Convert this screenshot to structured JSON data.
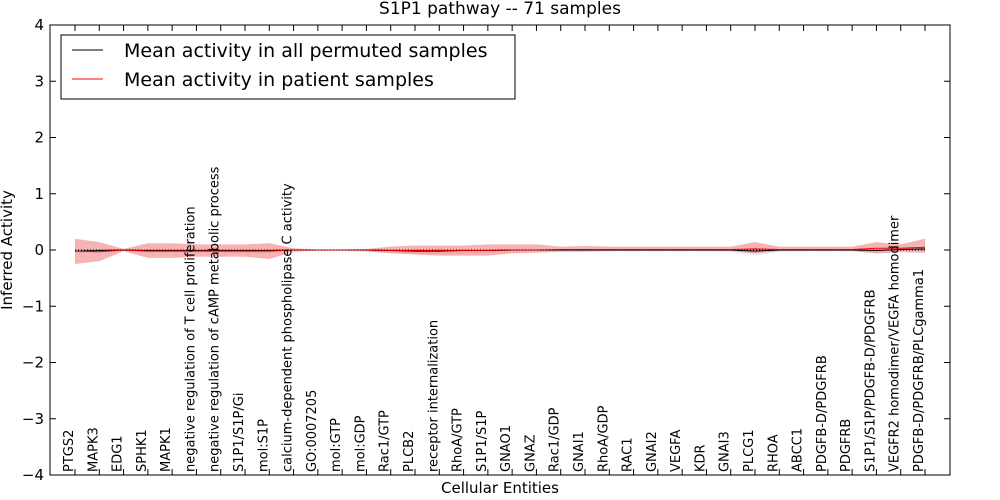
{
  "chart_data": {
    "type": "line",
    "title": "S1P1 pathway -- 71 samples",
    "xlabel": "Cellular Entities",
    "ylabel": "Inferred Activity",
    "ylim": [
      -4,
      4
    ],
    "yticks": [
      -4,
      -3,
      -2,
      -1,
      0,
      1,
      2,
      3,
      4
    ],
    "ytick_labels": [
      "−4",
      "−3",
      "−2",
      "−1",
      "0",
      "1",
      "2",
      "3",
      "4"
    ],
    "legend_position": "top-left",
    "categories": [
      "PTGS2",
      "MAPK3",
      "EDG1",
      "SPHK1",
      "MAPK1",
      "negative regulation of T cell proliferation",
      "negative regulation of cAMP metabolic process",
      "S1P1/S1P/Gi",
      "mol:S1P",
      "calcium-dependent phospholipase C activity",
      "GO:0007205",
      "mol:GTP",
      "mol:GDP",
      "Rac1/GTP",
      "PLCB2",
      "receptor internalization",
      "RhoA/GTP",
      "S1P1/S1P",
      "GNAO1",
      "GNAZ",
      "Rac1/GDP",
      "GNAI1",
      "RhoA/GDP",
      "RAC1",
      "GNAI2",
      "VEGFA",
      "KDR",
      "GNAI3",
      "PLCG1",
      "RHOA",
      "ABCC1",
      "PDGFB-D/PDGFRB",
      "PDGFRB",
      "S1P1/S1P/PDGFB-D/PDGFRB",
      "VEGFR2 homodimer/VEGFA homodimer",
      "PDGFB-D/PDGFRB/PLCgamma1"
    ],
    "series": [
      {
        "name": "Mean activity in all permuted samples",
        "color": "#000000",
        "style": "solid",
        "values": [
          -0.02,
          -0.01,
          0.0,
          -0.01,
          -0.01,
          -0.01,
          -0.01,
          -0.01,
          -0.01,
          0.0,
          0.0,
          0.0,
          0.0,
          -0.01,
          -0.02,
          -0.02,
          -0.01,
          -0.01,
          0.0,
          0.0,
          0.0,
          0.0,
          0.0,
          0.0,
          0.0,
          0.0,
          0.0,
          0.0,
          -0.02,
          0.0,
          0.0,
          0.0,
          0.0,
          -0.01,
          0.01,
          0.02
        ],
        "band_upper": [
          0.02,
          0.02,
          0.01,
          0.02,
          0.02,
          0.02,
          0.02,
          0.02,
          0.02,
          0.01,
          0.01,
          0.01,
          0.01,
          0.02,
          0.02,
          0.02,
          0.02,
          0.02,
          0.01,
          0.01,
          0.01,
          0.01,
          0.01,
          0.01,
          0.01,
          0.01,
          0.01,
          0.01,
          0.02,
          0.01,
          0.01,
          0.01,
          0.01,
          0.03,
          0.03,
          0.04
        ],
        "band_lower": [
          -0.06,
          -0.05,
          -0.02,
          -0.05,
          -0.05,
          -0.05,
          -0.06,
          -0.06,
          -0.06,
          -0.02,
          -0.02,
          -0.02,
          -0.03,
          -0.05,
          -0.07,
          -0.07,
          -0.06,
          -0.06,
          -0.03,
          -0.02,
          -0.02,
          -0.02,
          -0.02,
          -0.02,
          -0.02,
          -0.02,
          -0.02,
          -0.03,
          -0.1,
          -0.03,
          -0.02,
          -0.02,
          -0.02,
          -0.06,
          -0.02,
          -0.02
        ]
      },
      {
        "name": "Mean activity in patient samples",
        "color": "#ff0000",
        "style": "solid",
        "values": [
          -0.02,
          -0.03,
          0.0,
          -0.02,
          -0.02,
          -0.02,
          -0.02,
          -0.02,
          -0.02,
          0.0,
          0.0,
          0.0,
          0.0,
          -0.01,
          -0.01,
          -0.01,
          -0.01,
          -0.01,
          0.0,
          0.0,
          0.01,
          0.01,
          0.01,
          0.01,
          0.01,
          0.01,
          0.01,
          0.01,
          0.02,
          0.01,
          0.01,
          0.01,
          0.01,
          0.03,
          0.03,
          0.05
        ],
        "band_upper": [
          0.2,
          0.14,
          0.02,
          0.12,
          0.12,
          0.1,
          0.1,
          0.1,
          0.12,
          0.03,
          0.01,
          0.01,
          0.02,
          0.06,
          0.08,
          0.08,
          0.08,
          0.1,
          0.1,
          0.1,
          0.06,
          0.07,
          0.06,
          0.06,
          0.06,
          0.06,
          0.06,
          0.06,
          0.14,
          0.06,
          0.06,
          0.06,
          0.06,
          0.14,
          0.1,
          0.2
        ],
        "band_lower": [
          -0.25,
          -0.2,
          -0.02,
          -0.14,
          -0.14,
          -0.12,
          -0.12,
          -0.12,
          -0.16,
          -0.03,
          -0.01,
          -0.01,
          -0.02,
          -0.06,
          -0.08,
          -0.1,
          -0.1,
          -0.1,
          -0.06,
          -0.05,
          -0.03,
          -0.03,
          -0.02,
          -0.02,
          -0.02,
          -0.02,
          -0.02,
          -0.02,
          -0.06,
          -0.02,
          -0.02,
          -0.02,
          -0.02,
          -0.06,
          -0.04,
          -0.05
        ]
      }
    ]
  },
  "colors": {
    "permuted_line": "#000000",
    "permuted_band": "#e6e6f0",
    "patient_line": "#ff0000",
    "patient_band": "#f08080"
  }
}
